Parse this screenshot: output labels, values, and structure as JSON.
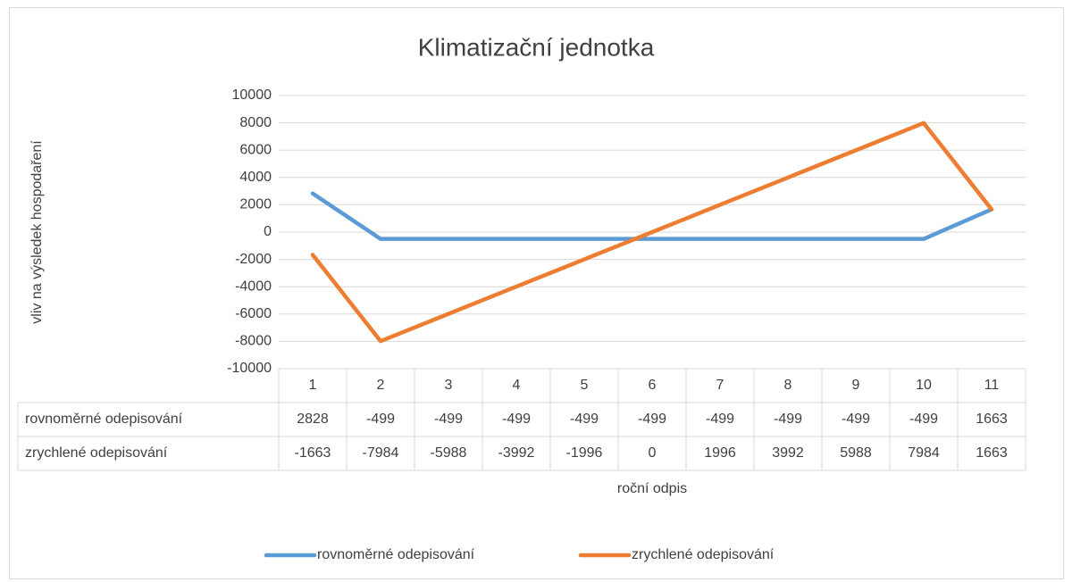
{
  "chart_data": {
    "type": "line",
    "title": "Klimatizační jednotka",
    "x_label": "roční odpis",
    "y_label": "vliv na výsledek hospodaření",
    "categories": [
      "1",
      "2",
      "3",
      "4",
      "5",
      "6",
      "7",
      "8",
      "9",
      "10",
      "11"
    ],
    "series": [
      {
        "name": "rovnoměrné odepisování",
        "color": "#5b9bd5",
        "values": [
          2828,
          -499,
          -499,
          -499,
          -499,
          -499,
          -499,
          -499,
          -499,
          -499,
          1663
        ]
      },
      {
        "name": "zrychlené odepisování",
        "color": "#ed7d31",
        "values": [
          -1663,
          -7984,
          -5988,
          -3992,
          -1996,
          0,
          1996,
          3992,
          5988,
          7984,
          1663
        ]
      }
    ],
    "ylim": [
      -10000,
      10000
    ],
    "yticks": [
      -10000,
      -8000,
      -6000,
      -4000,
      -2000,
      0,
      2000,
      4000,
      6000,
      8000,
      10000
    ],
    "grid": true,
    "data_table": true,
    "legend": "bottom"
  }
}
